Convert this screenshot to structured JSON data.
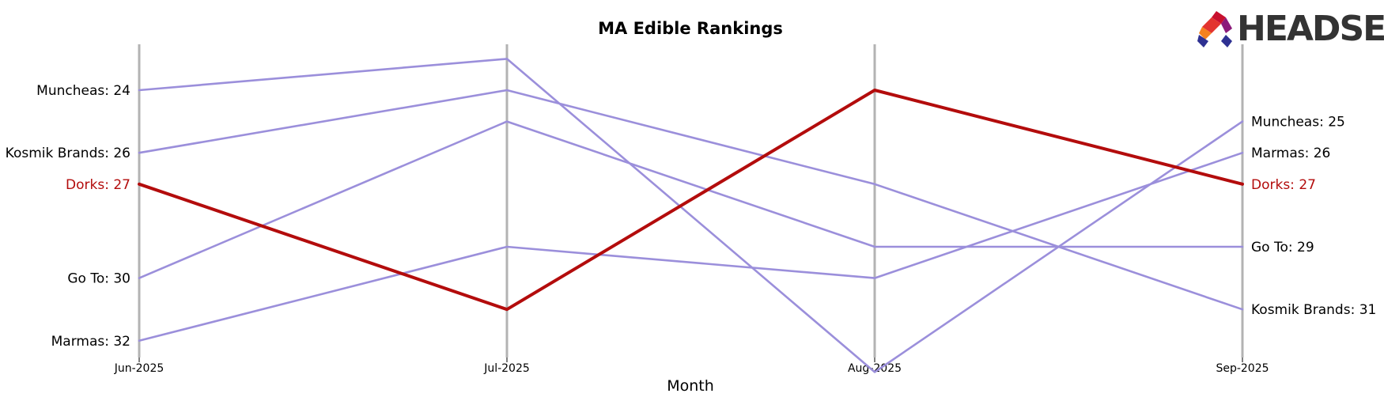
{
  "chart_data": {
    "type": "line",
    "title": "MA Edible Rankings",
    "xlabel": "Month",
    "ylabel": "",
    "x": [
      "Jun-2025",
      "Jul-2025",
      "Aug-2025",
      "Sep-2025"
    ],
    "ylim": [
      33,
      22
    ],
    "y_inverted": true,
    "grid": false,
    "highlight_series": "Dorks",
    "series": [
      {
        "name": "Muncheas",
        "values": [
          24,
          23,
          33,
          25
        ],
        "color": "#9b8fdb"
      },
      {
        "name": "Kosmik Brands",
        "values": [
          26,
          24,
          27,
          31
        ],
        "color": "#9b8fdb"
      },
      {
        "name": "Go To",
        "values": [
          30,
          25,
          29,
          29
        ],
        "color": "#9b8fdb"
      },
      {
        "name": "Marmas",
        "values": [
          32,
          29,
          30,
          26
        ],
        "color": "#9b8fdb"
      },
      {
        "name": "Dorks",
        "values": [
          27,
          31,
          24,
          27
        ],
        "color": "#b30c0c"
      }
    ],
    "left_labels": [
      {
        "series": "Muncheas",
        "text": "Muncheas: 24"
      },
      {
        "series": "Kosmik Brands",
        "text": "Kosmik Brands: 26"
      },
      {
        "series": "Dorks",
        "text": "Dorks: 27"
      },
      {
        "series": "Go To",
        "text": "Go To: 30"
      },
      {
        "series": "Marmas",
        "text": "Marmas: 32"
      }
    ],
    "right_labels": [
      {
        "series": "Muncheas",
        "text": "Muncheas: 25"
      },
      {
        "series": "Marmas",
        "text": "Marmas: 26"
      },
      {
        "series": "Dorks",
        "text": "Dorks: 27"
      },
      {
        "series": "Go To",
        "text": "Go To: 29"
      },
      {
        "series": "Kosmik Brands",
        "text": "Kosmik Brands: 31"
      }
    ]
  },
  "logo": {
    "text": "HEADSET"
  },
  "colors": {
    "highlight": "#b30c0c",
    "default": "#9b8fdb",
    "axis": "#b3b3b3"
  }
}
